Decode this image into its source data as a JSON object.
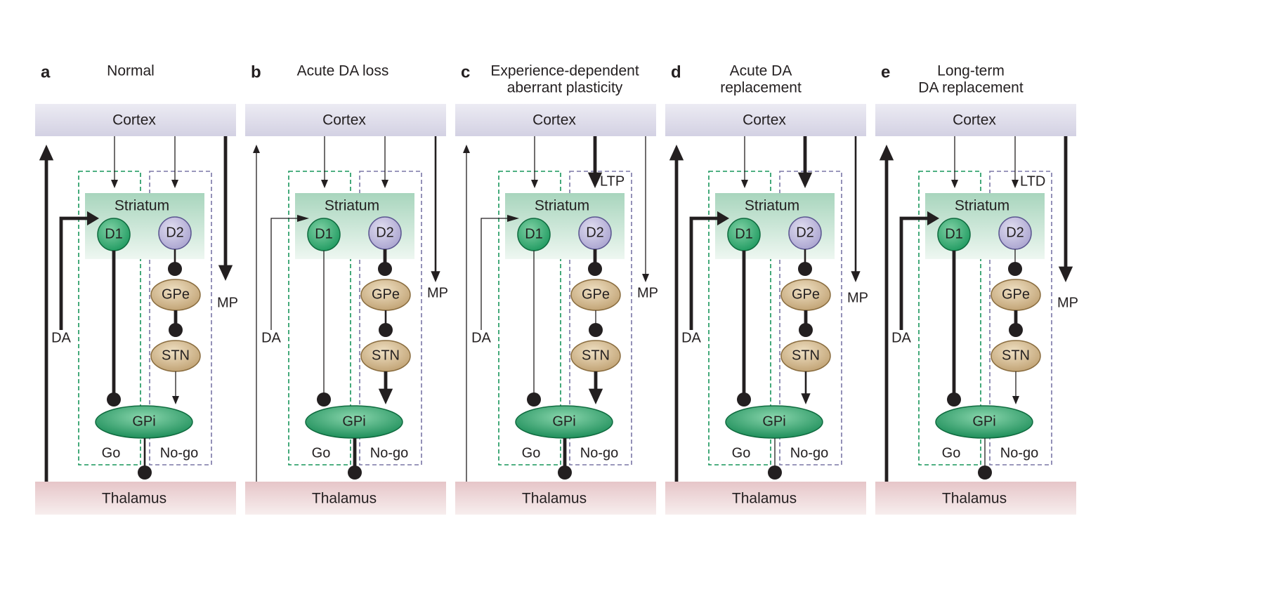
{
  "panels": [
    {
      "letter": "a",
      "title_lines": [
        "Normal"
      ],
      "cortex": "Cortex",
      "thalamus": "Thalamus",
      "striatum": "Striatum",
      "d1": "D1",
      "d2": "D2",
      "gpe": "GPe",
      "stn": "STN",
      "gpi": "GPi",
      "go": "Go",
      "nogo": "No-go",
      "da": "DA",
      "mp": "MP",
      "plasticity": "",
      "weights": {
        "da": "thick",
        "mp": "thick",
        "cortex_d1": "thin",
        "cortex_d2": "thin",
        "d1_gpi": "thick",
        "d2_gpe": "medium",
        "gpe_stn": "thick",
        "stn_gpi": "thin",
        "gpi_thal": "medium"
      }
    },
    {
      "letter": "b",
      "title_lines": [
        "Acute DA loss"
      ],
      "cortex": "Cortex",
      "thalamus": "Thalamus",
      "striatum": "Striatum",
      "d1": "D1",
      "d2": "D2",
      "gpe": "GPe",
      "stn": "STN",
      "gpi": "GPi",
      "go": "Go",
      "nogo": "No-go",
      "da": "DA",
      "mp": "MP",
      "plasticity": "",
      "weights": {
        "da": "thin",
        "mp": "medium",
        "cortex_d1": "thin",
        "cortex_d2": "thin",
        "d1_gpi": "thin",
        "d2_gpe": "thick",
        "gpe_stn": "medium",
        "stn_gpi": "thick",
        "gpi_thal": "thick"
      }
    },
    {
      "letter": "c",
      "title_lines": [
        "Experience-dependent",
        "aberrant plasticity"
      ],
      "cortex": "Cortex",
      "thalamus": "Thalamus",
      "striatum": "Striatum",
      "d1": "D1",
      "d2": "D2",
      "gpe": "GPe",
      "stn": "STN",
      "gpi": "GPi",
      "go": "Go",
      "nogo": "No-go",
      "da": "DA",
      "mp": "MP",
      "plasticity": "LTP",
      "weights": {
        "da": "thin",
        "mp": "thin",
        "cortex_d1": "thin",
        "cortex_d2": "thick",
        "d1_gpi": "thin",
        "d2_gpe": "thick",
        "gpe_stn": "thin",
        "stn_gpi": "thick",
        "gpi_thal": "thick"
      }
    },
    {
      "letter": "d",
      "title_lines": [
        "Acute DA",
        "replacement"
      ],
      "cortex": "Cortex",
      "thalamus": "Thalamus",
      "striatum": "Striatum",
      "d1": "D1",
      "d2": "D2",
      "gpe": "GPe",
      "stn": "STN",
      "gpi": "GPi",
      "go": "Go",
      "nogo": "No-go",
      "da": "DA",
      "mp": "MP",
      "plasticity": "",
      "weights": {
        "da": "thick",
        "mp": "medium",
        "cortex_d1": "thin",
        "cortex_d2": "thick",
        "d1_gpi": "thick",
        "d2_gpe": "medium",
        "gpe_stn": "thick",
        "stn_gpi": "medium",
        "gpi_thal": "thin"
      }
    },
    {
      "letter": "e",
      "title_lines": [
        "Long-term",
        "DA replacement"
      ],
      "cortex": "Cortex",
      "thalamus": "Thalamus",
      "striatum": "Striatum",
      "d1": "D1",
      "d2": "D2",
      "gpe": "GPe",
      "stn": "STN",
      "gpi": "GPi",
      "go": "Go",
      "nogo": "No-go",
      "da": "DA",
      "mp": "MP",
      "plasticity": "LTD",
      "weights": {
        "da": "thick",
        "mp": "thick",
        "cortex_d1": "thin",
        "cortex_d2": "thin",
        "d1_gpi": "thick",
        "d2_gpe": "thin",
        "gpe_stn": "thick",
        "stn_gpi": "thin",
        "gpi_thal": "thin"
      }
    }
  ],
  "colors": {
    "cortex_band": "#d3d1e3",
    "thalamus_band": "#e6c5c8",
    "striatum_top": "#a8d5bd",
    "striatum_bottom": "#eef7f1",
    "go_border": "#17955a",
    "nogo_border": "#7a76a6",
    "d1_fill": "#1f9a60",
    "d2_fill": "#a9a3cf",
    "gpe_stn_fill": "#bfa071",
    "gpi_fill": "#178a55",
    "line": "#231f20"
  }
}
